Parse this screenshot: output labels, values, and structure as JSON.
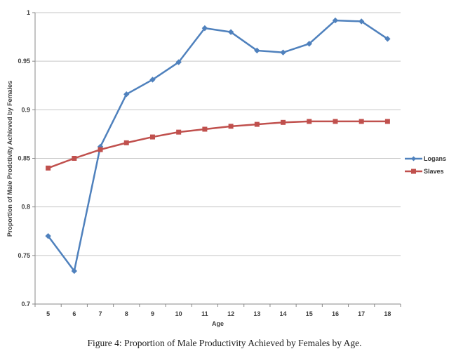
{
  "figure": {
    "caption": "Figure 4: Proportion of Male Productivity Achieved by Females by Age."
  },
  "chart_data": {
    "type": "line",
    "x": [
      5,
      6,
      7,
      8,
      9,
      10,
      11,
      12,
      13,
      14,
      15,
      16,
      17,
      18
    ],
    "xtick_labels": [
      "5",
      "6",
      "7",
      "8",
      "9",
      "10",
      "11",
      "12",
      "13",
      "14",
      "15",
      "16",
      "17",
      "18"
    ],
    "series": [
      {
        "name": "Logans",
        "color": "#4F81BD",
        "marker": "diamond",
        "values": [
          0.77,
          0.734,
          0.862,
          0.916,
          0.931,
          0.949,
          0.984,
          0.98,
          0.961,
          0.959,
          0.968,
          0.992,
          0.991,
          0.973
        ]
      },
      {
        "name": "Slaves",
        "color": "#C0504D",
        "marker": "square",
        "values": [
          0.84,
          0.85,
          0.859,
          0.866,
          0.872,
          0.877,
          0.88,
          0.883,
          0.885,
          0.887,
          0.888,
          0.888,
          0.888,
          0.888
        ]
      }
    ],
    "title": "",
    "xlabel": "Age",
    "ylabel": "Proportion of Male Prodctivity Achieved by Females",
    "ylim": [
      0.7,
      1.0
    ],
    "ytick_step": 0.05,
    "ytick_labels": [
      "0.7",
      "0.75",
      "0.8",
      "0.85",
      "0.9",
      "0.95",
      "1"
    ],
    "grid": "horizontal",
    "legend_position": "right",
    "colors": {
      "gridline": "#C6C6C6",
      "axis": "#898989",
      "tick_text": "#3F3F3F"
    }
  }
}
